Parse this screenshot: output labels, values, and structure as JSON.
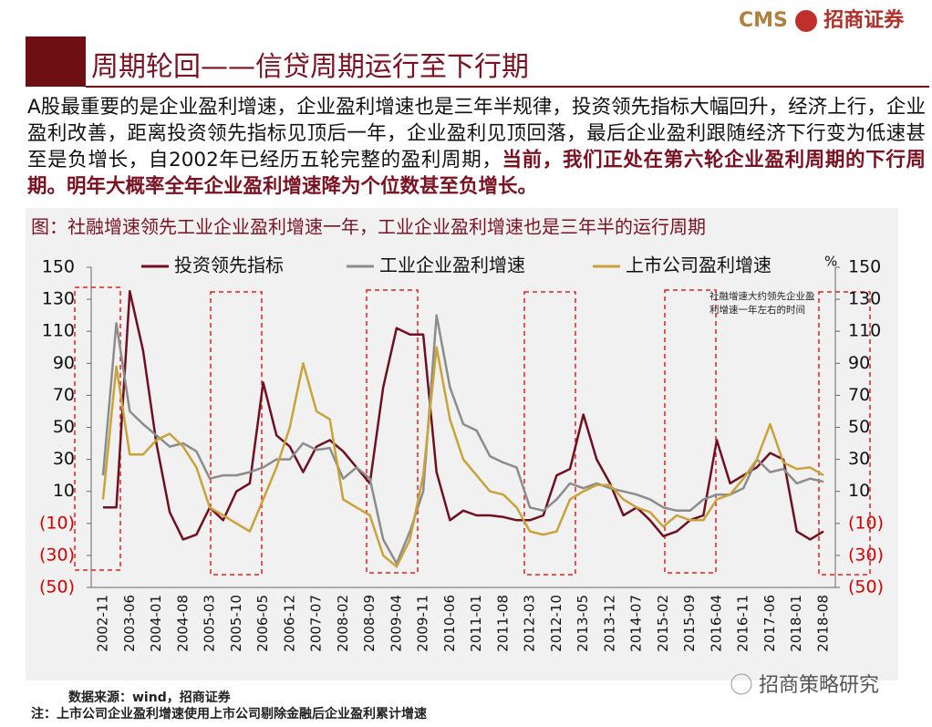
{
  "logo": {
    "brand": "CMS",
    "name": "招商证券"
  },
  "header": {
    "title": "周期轮回——信贷周期运行至下行期"
  },
  "paragraph": {
    "normal": "A股最重要的是企业盈利增速，企业盈利增速也是三年半规律，投资领先指标大幅回升，经济上行，企业盈利改善，距离投资领先指标见顶后一年，企业盈利见顶回落，最后企业盈利跟随经济下行变为低速甚至是负增长，自2002年已经历五轮完整的盈利周期，",
    "bold": "当前，我们正处在第六轮企业盈利周期的下行周期。明年大概率全年企业盈利增速降为个位数甚至负增长。"
  },
  "footer": {
    "source": "数据来源：wind，招商证券",
    "note": "注：上市公司企业盈利增速使用上市公司剔除金融后企业盈利累计增速",
    "watermark": "招商策略研究"
  },
  "chart_data": {
    "type": "line",
    "title": "图：社融增速领先工业企业盈利增速一年，工业企业盈利增速也是三年半的运行周期",
    "annotation": "社融增速大约领先企业盈利增速一年左右的时间",
    "y2label": "%",
    "categories": [
      "2002-11",
      null,
      "2003-06",
      null,
      "2004-01",
      null,
      "2004-08",
      null,
      "2005-03",
      null,
      "2005-10",
      null,
      "2006-05",
      null,
      "2006-12",
      null,
      "2007-07",
      null,
      "2008-02",
      null,
      "2008-09",
      null,
      "2009-04",
      null,
      "2009-11",
      null,
      "2010-06",
      null,
      "2011-01",
      null,
      "2011-08",
      null,
      "2012-03",
      null,
      "2012-10",
      null,
      "2013-05",
      null,
      "2013-12",
      null,
      "2014-07",
      null,
      "2015-02",
      null,
      "2015-09",
      null,
      "2016-04",
      null,
      "2016-11",
      null,
      "2017-06",
      null,
      "2018-01",
      null,
      "2018-08"
    ],
    "series": [
      {
        "name": "投资领先指标",
        "color": "#6e1020",
        "values": [
          0,
          0,
          135,
          98,
          40,
          -3,
          -20,
          -17,
          0,
          -8,
          10,
          15,
          78,
          45,
          38,
          22,
          38,
          42,
          35,
          25,
          15,
          75,
          112,
          108,
          108,
          22,
          -8,
          -2,
          -5,
          -5,
          -6,
          -8,
          -8,
          -5,
          20,
          24,
          58,
          30,
          15,
          -5,
          0,
          -8,
          -18,
          -15,
          -8,
          -5,
          42,
          15,
          20,
          25,
          34,
          30,
          -15,
          -20,
          -15
        ]
      },
      {
        "name": "工业企业盈利增速",
        "color": "#8c8c8c",
        "values": [
          20,
          115,
          60,
          52,
          45,
          38,
          40,
          35,
          18,
          20,
          20,
          22,
          25,
          30,
          30,
          40,
          36,
          37,
          18,
          25,
          18,
          -20,
          -35,
          -15,
          10,
          120,
          75,
          52,
          48,
          32,
          28,
          25,
          0,
          -2,
          5,
          15,
          12,
          15,
          12,
          10,
          8,
          5,
          0,
          -2,
          -2,
          5,
          8,
          8,
          12,
          30,
          22,
          24,
          15,
          18,
          16
        ]
      },
      {
        "name": "上市公司盈利增速",
        "color": "#c9a33a",
        "values": [
          5,
          88,
          33,
          33,
          42,
          46,
          38,
          25,
          0,
          -5,
          -10,
          -15,
          5,
          25,
          50,
          90,
          60,
          55,
          5,
          0,
          -5,
          -30,
          -37,
          -20,
          20,
          100,
          55,
          30,
          20,
          10,
          8,
          0,
          -15,
          -17,
          -15,
          5,
          10,
          14,
          14,
          5,
          0,
          -3,
          -12,
          -5,
          -8,
          -8,
          5,
          8,
          18,
          30,
          52,
          28,
          24,
          25,
          20
        ]
      }
    ],
    "ylim": [
      -50,
      150
    ],
    "yticks": [
      150,
      130,
      110,
      90,
      70,
      50,
      30,
      10,
      {
        "value": -10,
        "label": "(10)"
      },
      {
        "value": -30,
        "label": "(30)"
      },
      {
        "value": -50,
        "label": "(50)"
      }
    ],
    "y2lim": [
      -50,
      150
    ],
    "y2ticks": [
      150,
      130,
      110,
      90,
      70,
      50,
      30,
      10,
      {
        "value": -10,
        "label": "(10)"
      },
      {
        "value": -30,
        "label": "(30)"
      },
      {
        "value": -50,
        "label": "(50)"
      }
    ]
  }
}
